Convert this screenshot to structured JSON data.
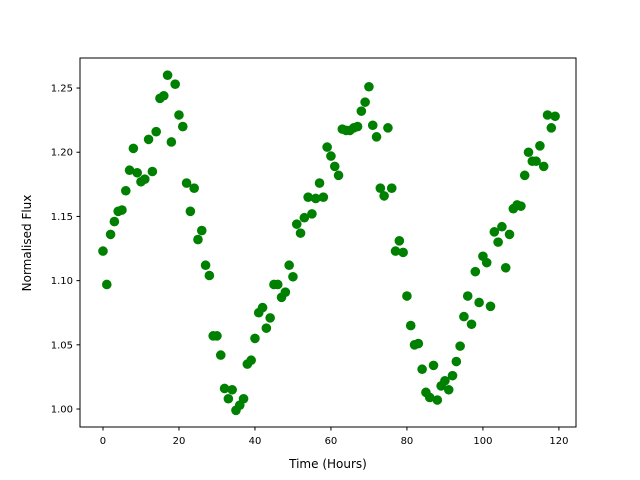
{
  "chart_data": {
    "type": "scatter",
    "title": "",
    "xlabel": "Time (Hours)",
    "ylabel": "Normalised Flux",
    "xlim": [
      -6.05,
      124.5
    ],
    "ylim": [
      0.986,
      1.2734
    ],
    "xticks": [
      0,
      20,
      40,
      60,
      80,
      100,
      120
    ],
    "xtick_labels": [
      "0",
      "20",
      "40",
      "60",
      "80",
      "100",
      "120"
    ],
    "yticks": [
      1.0,
      1.05,
      1.1,
      1.15,
      1.2,
      1.25
    ],
    "ytick_labels": [
      "1.00",
      "1.05",
      "1.10",
      "1.15",
      "1.20",
      "1.25"
    ],
    "grid": false,
    "marker_color": "#008000",
    "x": [
      0,
      1,
      2,
      3,
      4,
      5,
      6,
      7,
      8,
      9,
      10,
      11,
      12,
      13,
      14,
      15,
      16,
      17,
      18,
      19,
      20,
      21,
      22,
      23,
      24,
      25,
      26,
      27,
      28,
      29,
      30,
      31,
      32,
      33,
      34,
      35,
      36,
      37,
      38,
      39,
      40,
      41,
      42,
      43,
      44,
      45,
      46,
      47,
      48,
      49,
      50,
      51,
      52,
      53,
      54,
      55,
      56,
      57,
      58,
      59,
      60,
      61,
      62,
      63,
      64,
      65,
      66,
      67,
      68,
      69,
      70,
      71,
      72,
      73,
      74,
      75,
      76,
      77,
      78,
      79,
      80,
      81,
      82,
      83,
      84,
      85,
      86,
      87,
      88,
      89,
      90,
      91,
      92,
      93,
      94,
      95,
      96,
      97,
      98,
      99,
      100,
      101,
      102,
      103,
      104,
      105,
      106,
      107,
      108,
      109,
      110,
      111,
      112,
      113,
      114,
      115,
      116,
      117,
      118,
      119
    ],
    "y": [
      1.123,
      1.097,
      1.136,
      1.146,
      1.154,
      1.155,
      1.17,
      1.186,
      1.203,
      1.184,
      1.177,
      1.179,
      1.21,
      1.185,
      1.216,
      1.242,
      1.244,
      1.26,
      1.208,
      1.253,
      1.229,
      1.22,
      1.176,
      1.154,
      1.172,
      1.132,
      1.139,
      1.112,
      1.104,
      1.057,
      1.057,
      1.042,
      1.016,
      1.008,
      1.015,
      0.999,
      1.003,
      1.008,
      1.035,
      1.038,
      1.055,
      1.075,
      1.079,
      1.063,
      1.071,
      1.097,
      1.097,
      1.087,
      1.091,
      1.112,
      1.103,
      1.144,
      1.137,
      1.149,
      1.165,
      1.152,
      1.164,
      1.176,
      1.165,
      1.204,
      1.197,
      1.189,
      1.182,
      1.218,
      1.217,
      1.217,
      1.219,
      1.22,
      1.232,
      1.239,
      1.251,
      1.221,
      1.212,
      1.172,
      1.166,
      1.219,
      1.172,
      1.123,
      1.131,
      1.122,
      1.088,
      1.065,
      1.05,
      1.051,
      1.031,
      1.013,
      1.009,
      1.034,
      1.007,
      1.018,
      1.022,
      1.015,
      1.026,
      1.037,
      1.049,
      1.072,
      1.088,
      1.066,
      1.107,
      1.083,
      1.119,
      1.114,
      1.08,
      1.138,
      1.13,
      1.142,
      1.11,
      1.136,
      1.156,
      1.159,
      1.158,
      1.182,
      1.2,
      1.193,
      1.193,
      1.205,
      1.189,
      1.229,
      1.219,
      1.228
    ]
  }
}
